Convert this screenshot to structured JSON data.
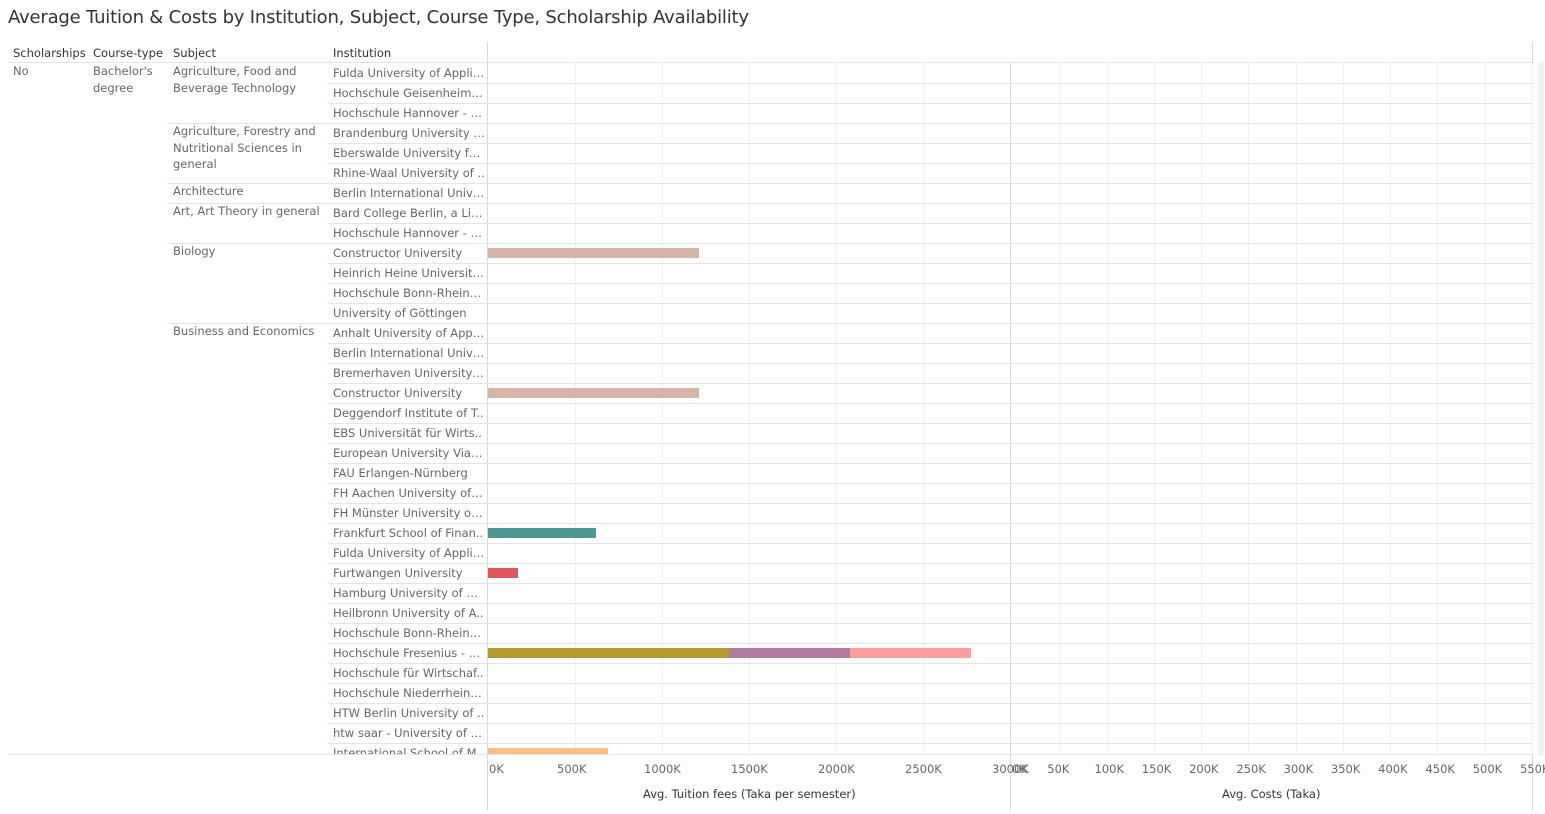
{
  "title": "Average Tuition & Costs by Institution, Subject, Course Type, Scholarship Availability",
  "headers": {
    "scholarships": "Scholarships",
    "course_type": "Course-type",
    "subject": "Subject",
    "institution": "Institution"
  },
  "scholarships_value": "No",
  "course_type_value": "Bachelor's degree",
  "subjects": [
    {
      "name": "Agriculture, Food and Beverage Technology",
      "start": 0,
      "lines": [
        "Agriculture, Food and",
        "Beverage Technology"
      ]
    },
    {
      "name": "Agriculture, Forestry and Nutritional Sciences in general",
      "start": 3,
      "lines": [
        "Agriculture, Forestry and",
        "Nutritional Sciences in",
        "general"
      ]
    },
    {
      "name": "Architecture",
      "start": 6,
      "lines": [
        "Architecture"
      ]
    },
    {
      "name": "Art, Art Theory in general",
      "start": 7,
      "lines": [
        "Art, Art Theory in general"
      ]
    },
    {
      "name": "Biology",
      "start": 9,
      "lines": [
        "Biology"
      ]
    },
    {
      "name": "Business and Economics",
      "start": 13,
      "lines": [
        "Business and Economics"
      ]
    }
  ],
  "institutions": [
    "Fulda University of Applie..",
    "Hochschule Geisenheim U..",
    "Hochschule Hannover - Un..",
    "Brandenburg University o..",
    "Eberswalde University for..",
    "Rhine-Waal University of ..",
    "Berlin International Unive..",
    " Bard College Berlin, a Lib..",
    "Hochschule Hannover - Un..",
    "Constructor University",
    "Heinrich Heine University ..",
    "Hochschule Bonn-Rhein-Si..",
    "University of Göttingen",
    "Anhalt University of Appli..",
    "Berlin International Unive..",
    "Bremerhaven University o..",
    "Constructor University",
    "Deggendorf Institute of T..",
    "EBS Universität für Wirts..",
    "European University Viad..",
    "FAU Erlangen-Nürnberg",
    "FH Aachen University of A..",
    "FH Münster University of ..",
    "Frankfurt School of Finan..",
    "Fulda University of Applie..",
    "Furtwangen University",
    "Hamburg University of Ap..",
    "Heilbronn University of A..",
    "Hochschule Bonn-Rhein-Si..",
    "Hochschule Fresenius - Un..",
    "Hochschule für Wirtschaf..",
    "Hochschule Niederrhein - ..",
    "HTW Berlin University of ..",
    "htw saar - University of A..",
    "International School of M.."
  ],
  "chart_data": [
    {
      "type": "bar",
      "orientation": "horizontal",
      "stacked": true,
      "xlabel": "Avg. Tuition fees (Taka per semester)",
      "xlim": [
        0,
        3000000
      ],
      "ticks": [
        "0K",
        "500K",
        "1000K",
        "1500K",
        "2000K",
        "2500K",
        "3000K"
      ],
      "tick_values": [
        0,
        500000,
        1000000,
        1500000,
        2000000,
        2500000,
        3000000
      ],
      "segments": [
        {
          "row": 9,
          "start": 0,
          "value": 1210000,
          "color": "#d7b5a6"
        },
        {
          "row": 16,
          "start": 0,
          "value": 1210000,
          "color": "#d7b5a6"
        },
        {
          "row": 23,
          "start": 0,
          "value": 620000,
          "color": "#499894"
        },
        {
          "row": 25,
          "start": 0,
          "value": 175000,
          "color": "#e15759"
        },
        {
          "row": 29,
          "start": 0,
          "value": 1385000,
          "color": "#b6992d"
        },
        {
          "row": 29,
          "start": 1385000,
          "value": 695000,
          "color": "#b07aa1"
        },
        {
          "row": 29,
          "start": 2080000,
          "value": 695000,
          "color": "#ff9d9a"
        },
        {
          "row": 34,
          "start": 0,
          "value": 690000,
          "color": "#ffbe7d"
        }
      ]
    },
    {
      "type": "bar",
      "orientation": "horizontal",
      "xlabel": "Avg. Costs (Taka)",
      "xlim": [
        0,
        550000
      ],
      "ticks": [
        "0K",
        "50K",
        "100K",
        "150K",
        "200K",
        "250K",
        "300K",
        "350K",
        "400K",
        "450K",
        "500K",
        "550K"
      ],
      "tick_values": [
        0,
        50000,
        100000,
        150000,
        200000,
        250000,
        300000,
        350000,
        400000,
        450000,
        500000,
        550000
      ],
      "segments": []
    }
  ]
}
